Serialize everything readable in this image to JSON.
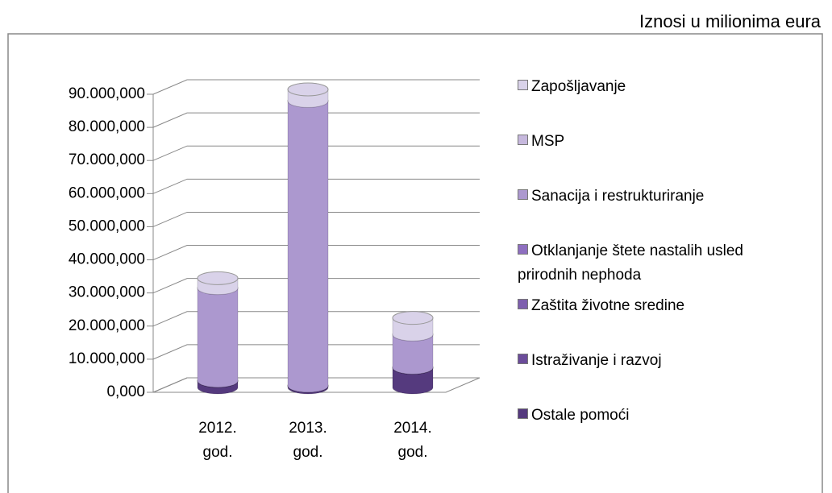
{
  "chart_data": {
    "type": "bar",
    "stacked": true,
    "three_d": true,
    "annotation": "Iznosi u milionima eura",
    "categories": [
      "2012. god.",
      "2013. god.",
      "2014. god."
    ],
    "ylim": [
      0,
      90000
    ],
    "yticks": [
      {
        "value": 0,
        "label": "0,000"
      },
      {
        "value": 10000,
        "label": "10.000,000"
      },
      {
        "value": 20000,
        "label": "20.000,000"
      },
      {
        "value": 30000,
        "label": "30.000,000"
      },
      {
        "value": 40000,
        "label": "40.000,000"
      },
      {
        "value": 50000,
        "label": "50.000,000"
      },
      {
        "value": 60000,
        "label": "60.000,000"
      },
      {
        "value": 70000,
        "label": "70.000,000"
      },
      {
        "value": 80000,
        "label": "80.000,000"
      },
      {
        "value": 90000,
        "label": "90.000,000"
      }
    ],
    "grid": true,
    "legend": "right",
    "series": [
      {
        "name": "Ostale pomoći",
        "color": "#553a7e",
        "values": [
          2000,
          500,
          6000
        ]
      },
      {
        "name": "Istraživanje i razvoj",
        "color": "#6b4c9a",
        "values": [
          0,
          0,
          0
        ]
      },
      {
        "name": "Zaštita životne sredine",
        "color": "#7e5fae",
        "values": [
          0,
          0,
          0
        ]
      },
      {
        "name": "Otklanjanje štete nastalih usled prirodnih nephoda",
        "color": "#8e6fc0",
        "values": [
          0,
          0,
          0
        ]
      },
      {
        "name": "Sanacija i restrukturiranje",
        "color": "#ac98cf",
        "values": [
          28000,
          86000,
          10000
        ]
      },
      {
        "name": "MSP",
        "color": "#c6b8dd",
        "values": [
          0,
          0,
          0
        ]
      },
      {
        "name": "Zapošljavanje",
        "color": "#d9d2e9",
        "values": [
          3000,
          3500,
          5000
        ]
      }
    ]
  }
}
